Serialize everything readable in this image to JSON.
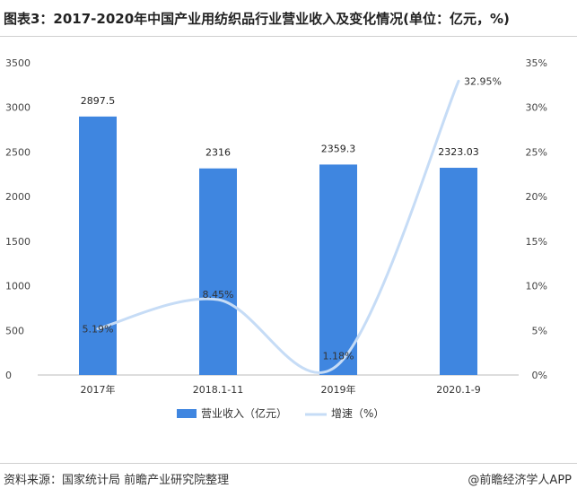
{
  "header": {
    "title": "图表3：2017-2020年中国产业用纺织品行业营业收入及变化情况(单位：亿元，%)"
  },
  "footer": {
    "source": "资料来源：国家统计局 前瞻产业研究院整理",
    "brand": "@前瞻经济学人APP"
  },
  "chart_data": {
    "type": "bar",
    "categories": [
      "2017年",
      "2018.1-11",
      "2019年",
      "2020.1-9"
    ],
    "y_left_ticks": [
      "0",
      "500",
      "1000",
      "1500",
      "2000",
      "2500",
      "3000",
      "3500"
    ],
    "y_right_ticks": [
      "0%",
      "5%",
      "10%",
      "15%",
      "20%",
      "25%",
      "30%",
      "35%"
    ],
    "ylim_left": [
      0,
      3500
    ],
    "ylim_right": [
      0,
      35
    ],
    "series": [
      {
        "name": "营业收入（亿元）",
        "type": "bar",
        "axis": "left",
        "color": "#3f86e0",
        "values": [
          2897.5,
          2316,
          2359.3,
          2323.03
        ],
        "labels": [
          "2897.5",
          "2316",
          "2359.3",
          "2323.03"
        ]
      },
      {
        "name": "增速（%）",
        "type": "line",
        "axis": "right",
        "color": "#c6dcf6",
        "values": [
          5.19,
          8.45,
          1.18,
          32.95
        ],
        "labels": [
          "5.19%",
          "8.45%",
          "1.18%",
          "32.95%"
        ]
      }
    ],
    "grid": false,
    "legend_position": "bottom"
  }
}
